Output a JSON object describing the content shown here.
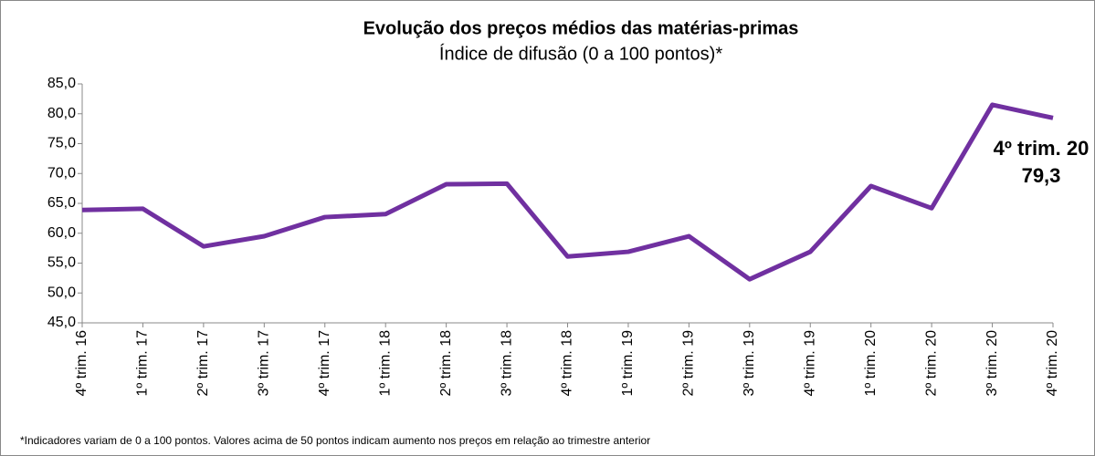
{
  "chart_data": {
    "type": "line",
    "title": "Evolução dos preços médios das matérias-primas",
    "subtitle": "Índice de difusão (0 a 100 pontos)*",
    "footnote": "*Indicadores variam de 0 a 100 pontos. Valores acima de 50 pontos indicam aumento nos preços em relação ao trimestre anterior",
    "categories": [
      "4º trim. 16",
      "1º trim. 17",
      "2º trim. 17",
      "3º trim. 17",
      "4º trim. 17",
      "1º trim. 18",
      "2º trim. 18",
      "3º trim. 18",
      "4º trim. 18",
      "1º trim. 19",
      "2º trim. 19",
      "3º trim. 19",
      "4º trim. 19",
      "1º trim. 20",
      "2º trim. 20",
      "3º trim. 20",
      "4º trim. 20"
    ],
    "values": [
      63.9,
      64.1,
      57.8,
      59.5,
      62.7,
      63.2,
      68.2,
      68.3,
      56.1,
      56.9,
      59.5,
      52.3,
      56.9,
      67.9,
      64.2,
      81.5,
      79.3
    ],
    "color": "#7030a0",
    "annotation": [
      "4º trim. 20",
      "79,3"
    ],
    "ylim": [
      45,
      85
    ],
    "yticks": [
      {
        "value": 45,
        "label": "45,0"
      },
      {
        "value": 50,
        "label": "50,0"
      },
      {
        "value": 55,
        "label": "55,0"
      },
      {
        "value": 60,
        "label": "60,0"
      },
      {
        "value": 65,
        "label": "65,0"
      },
      {
        "value": 70,
        "label": "70,0"
      },
      {
        "value": 75,
        "label": "75,0"
      },
      {
        "value": 80,
        "label": "80,0"
      },
      {
        "value": 85,
        "label": "85,0"
      }
    ],
    "grid": false
  }
}
